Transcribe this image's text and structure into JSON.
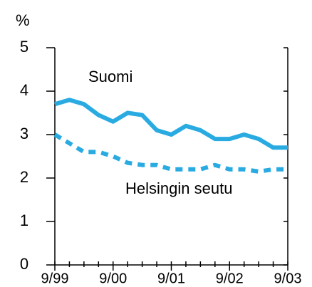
{
  "chart_data": {
    "type": "line",
    "y_unit": "%",
    "categories": [
      "9/99",
      null,
      null,
      null,
      "9/00",
      null,
      null,
      null,
      "9/01",
      null,
      null,
      null,
      "9/02",
      null,
      null,
      null,
      "9/03"
    ],
    "series": [
      {
        "name": "Suomi",
        "color": "#29abe2",
        "style": "solid",
        "values": [
          3.7,
          3.8,
          3.7,
          3.45,
          3.3,
          3.5,
          3.45,
          3.1,
          3.0,
          3.2,
          3.1,
          2.9,
          2.9,
          3.0,
          2.9,
          2.7,
          2.7
        ]
      },
      {
        "name": "Helsingin seutu",
        "color": "#29abe2",
        "style": "dotted",
        "values": [
          3.0,
          2.8,
          2.6,
          2.6,
          2.5,
          2.35,
          2.3,
          2.3,
          2.2,
          2.2,
          2.2,
          2.3,
          2.2,
          2.2,
          2.15,
          2.2,
          2.2
        ]
      }
    ],
    "ylim": [
      0,
      5
    ],
    "yticks": [
      0,
      1,
      2,
      3,
      4,
      5
    ],
    "grid": false
  }
}
